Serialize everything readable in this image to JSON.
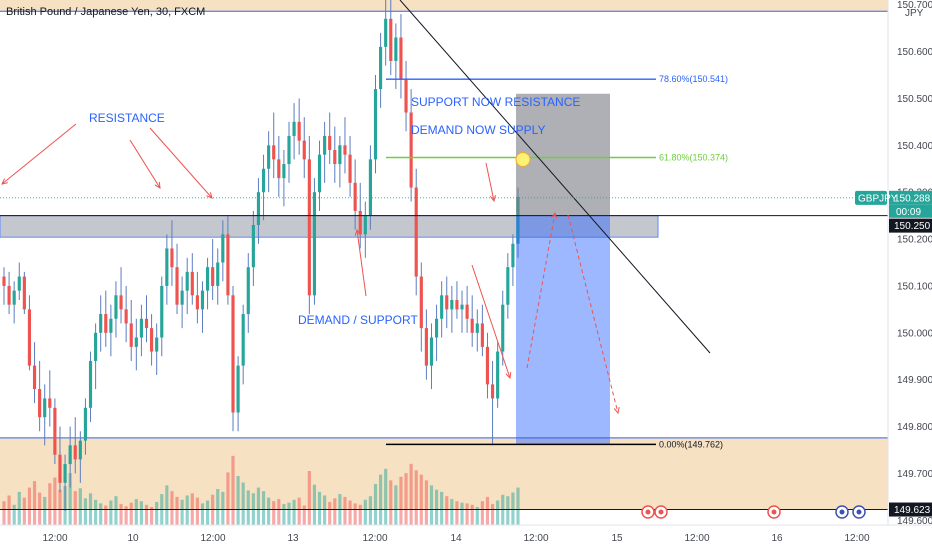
{
  "chart_data": {
    "type": "candlestick",
    "title": "British Pound / Japanese Yen, 30, FXCM",
    "currency": "JPY",
    "symbol": "GBPJPY",
    "ylim": [
      149.59,
      150.71
    ],
    "y_ticks": [
      "150.700",
      "150.600",
      "150.500",
      "150.400",
      "150.300",
      "150.200",
      "150.100",
      "150.000",
      "149.900",
      "149.800",
      "149.700",
      "149.600"
    ],
    "x_ticks": [
      "12:00",
      "10",
      "12:00",
      "13",
      "12:00",
      "14",
      "12:00",
      "15",
      "12:00",
      "16",
      "12:00"
    ],
    "price_labels": {
      "last_price": "150.288",
      "countdown": "00:09",
      "level_high": "150.250",
      "level_low": "149.623"
    },
    "zones": {
      "resistance": [
        150.204,
        150.25
      ],
      "upper_supply": [
        150.686,
        150.71
      ],
      "lower_demand": [
        149.623,
        149.776
      ]
    },
    "annotations": {
      "resistance": "RESISTANCE",
      "demand_support": "DEMAND / SUPPORT",
      "support_now_resistance": "SUPPORT NOW RESISTANCE",
      "demand_now_supply": "DEMAND NOW SUPPLY"
    },
    "fib_levels": [
      {
        "label": "78.60%(150.541)",
        "price": 150.541
      },
      {
        "label": "61.80%(150.374)",
        "price": 150.374
      },
      {
        "label": "0.00%(149.762)",
        "price": 149.762
      }
    ],
    "position": {
      "entry": 150.25,
      "stop": 150.51,
      "target": 149.762
    },
    "series": [
      {
        "values": [
          [
            150.12,
            150.14,
            150.06,
            150.1
          ],
          [
            150.1,
            150.13,
            150.04,
            150.06
          ],
          [
            150.06,
            150.11,
            150.02,
            150.09
          ],
          [
            150.09,
            150.15,
            150.07,
            150.12
          ],
          [
            150.12,
            150.13,
            150.04,
            150.05
          ],
          [
            150.05,
            150.08,
            149.92,
            149.93
          ],
          [
            149.93,
            149.98,
            149.85,
            149.88
          ],
          [
            149.88,
            149.94,
            149.79,
            149.82
          ],
          [
            149.82,
            149.89,
            149.76,
            149.86
          ],
          [
            149.86,
            149.92,
            149.8,
            149.84
          ],
          [
            149.84,
            149.86,
            149.72,
            149.74
          ],
          [
            149.74,
            149.8,
            149.66,
            149.68
          ],
          [
            149.68,
            149.74,
            149.62,
            149.72
          ],
          [
            149.72,
            149.8,
            149.67,
            149.76
          ],
          [
            149.76,
            149.82,
            149.7,
            149.73
          ],
          [
            149.73,
            149.79,
            149.68,
            149.77
          ],
          [
            149.77,
            149.86,
            149.74,
            149.84
          ],
          [
            149.84,
            149.96,
            149.81,
            149.94
          ],
          [
            149.94,
            150.02,
            149.88,
            150.0
          ],
          [
            150.0,
            150.08,
            149.96,
            150.04
          ],
          [
            150.04,
            150.09,
            149.97,
            150.0
          ],
          [
            150.0,
            150.06,
            149.95,
            150.03
          ],
          [
            150.03,
            150.11,
            149.99,
            150.08
          ],
          [
            150.08,
            150.14,
            150.02,
            150.05
          ],
          [
            150.05,
            150.1,
            149.98,
            150.02
          ],
          [
            150.02,
            150.07,
            149.94,
            149.97
          ],
          [
            149.97,
            150.03,
            149.92,
            149.99
          ],
          [
            149.99,
            150.06,
            149.95,
            150.03
          ],
          [
            150.03,
            150.08,
            149.98,
            150.01
          ],
          [
            150.01,
            150.04,
            149.93,
            149.96
          ],
          [
            149.96,
            150.02,
            149.91,
            149.99
          ],
          [
            149.99,
            150.12,
            149.95,
            150.1
          ],
          [
            150.1,
            150.21,
            150.06,
            150.18
          ],
          [
            150.18,
            150.24,
            150.1,
            150.14
          ],
          [
            150.14,
            150.19,
            150.04,
            150.06
          ],
          [
            150.06,
            150.12,
            150.01,
            150.09
          ],
          [
            150.09,
            150.16,
            150.04,
            150.13
          ],
          [
            150.13,
            150.17,
            150.06,
            150.08
          ],
          [
            150.08,
            150.13,
            150.02,
            150.05
          ],
          [
            150.05,
            150.11,
            150.0,
            150.09
          ],
          [
            150.09,
            150.16,
            150.05,
            150.14
          ],
          [
            150.14,
            150.2,
            150.07,
            150.1
          ],
          [
            150.1,
            150.18,
            150.06,
            150.15
          ],
          [
            150.15,
            150.24,
            150.11,
            150.21
          ],
          [
            150.21,
            150.25,
            150.06,
            150.08
          ],
          [
            150.08,
            150.1,
            149.79,
            149.83
          ],
          [
            149.83,
            149.95,
            149.79,
            149.93
          ],
          [
            149.93,
            150.06,
            149.89,
            150.04
          ],
          [
            150.04,
            150.17,
            150.0,
            150.14
          ],
          [
            150.14,
            150.26,
            150.1,
            150.23
          ],
          [
            150.23,
            150.33,
            150.19,
            150.3
          ],
          [
            150.3,
            150.38,
            150.24,
            150.35
          ],
          [
            150.35,
            150.43,
            150.3,
            150.4
          ],
          [
            150.4,
            150.47,
            150.33,
            150.37
          ],
          [
            150.37,
            150.42,
            150.29,
            150.33
          ],
          [
            150.33,
            150.39,
            150.27,
            150.36
          ],
          [
            150.36,
            150.45,
            150.32,
            150.42
          ],
          [
            150.42,
            150.49,
            150.37,
            150.45
          ],
          [
            150.45,
            150.5,
            150.38,
            150.41
          ],
          [
            150.41,
            150.46,
            150.33,
            150.37
          ],
          [
            150.37,
            150.42,
            150.04,
            150.08
          ],
          [
            150.08,
            150.33,
            150.06,
            150.3
          ],
          [
            150.3,
            150.41,
            150.26,
            150.38
          ],
          [
            150.38,
            150.45,
            150.32,
            150.42
          ],
          [
            150.42,
            150.47,
            150.36,
            150.39
          ],
          [
            150.39,
            150.44,
            150.32,
            150.36
          ],
          [
            150.36,
            150.42,
            150.31,
            150.4
          ],
          [
            150.4,
            150.46,
            150.34,
            150.38
          ],
          [
            150.38,
            150.42,
            150.29,
            150.32
          ],
          [
            150.32,
            150.37,
            150.22,
            150.26
          ],
          [
            150.26,
            150.32,
            150.18,
            150.21
          ],
          [
            150.21,
            150.28,
            150.16,
            150.25
          ],
          [
            150.25,
            150.4,
            150.22,
            150.37
          ],
          [
            150.37,
            150.55,
            150.34,
            150.52
          ],
          [
            150.52,
            150.64,
            150.48,
            150.61
          ],
          [
            150.61,
            150.71,
            150.57,
            150.67
          ],
          [
            150.67,
            150.72,
            150.55,
            150.58
          ],
          [
            150.58,
            150.66,
            150.52,
            150.63
          ],
          [
            150.63,
            150.68,
            150.5,
            150.54
          ],
          [
            150.54,
            150.58,
            150.43,
            150.47
          ],
          [
            150.47,
            150.52,
            150.28,
            150.31
          ],
          [
            150.31,
            150.35,
            150.08,
            150.12
          ],
          [
            150.12,
            150.15,
            149.96,
            150.01
          ],
          [
            150.01,
            150.05,
            149.9,
            149.93
          ],
          [
            149.93,
            150.02,
            149.88,
            149.99
          ],
          [
            149.99,
            150.06,
            149.94,
            150.03
          ],
          [
            150.03,
            150.11,
            149.99,
            150.08
          ],
          [
            150.08,
            150.12,
            150.01,
            150.05
          ],
          [
            150.05,
            150.1,
            150.0,
            150.07
          ],
          [
            150.07,
            150.11,
            150.03,
            150.05
          ],
          [
            150.05,
            150.09,
            150.0,
            150.06
          ],
          [
            150.06,
            150.1,
            150.0,
            150.03
          ],
          [
            150.03,
            150.08,
            149.97,
            150.0
          ],
          [
            150.0,
            150.05,
            149.96,
            150.02
          ],
          [
            150.02,
            150.06,
            149.95,
            149.97
          ],
          [
            149.97,
            150.0,
            149.86,
            149.89
          ],
          [
            149.89,
            149.94,
            149.76,
            149.86
          ],
          [
            149.86,
            149.98,
            149.84,
            149.96
          ],
          [
            149.96,
            150.09,
            149.93,
            150.06
          ],
          [
            150.06,
            150.17,
            150.03,
            150.14
          ],
          [
            150.14,
            150.21,
            150.1,
            150.19
          ],
          [
            150.19,
            150.31,
            150.16,
            150.29
          ]
        ]
      }
    ],
    "volume": [
      0.33,
      0.41,
      0.28,
      0.46,
      0.38,
      0.52,
      0.61,
      0.45,
      0.39,
      0.58,
      0.66,
      0.49,
      0.54,
      0.72,
      0.47,
      0.51,
      0.37,
      0.44,
      0.35,
      0.3,
      0.27,
      0.34,
      0.4,
      0.29,
      0.26,
      0.31,
      0.36,
      0.33,
      0.28,
      0.25,
      0.32,
      0.43,
      0.55,
      0.47,
      0.39,
      0.35,
      0.41,
      0.44,
      0.38,
      0.3,
      0.34,
      0.42,
      0.5,
      0.46,
      0.73,
      0.96,
      0.68,
      0.59,
      0.48,
      0.44,
      0.52,
      0.47,
      0.38,
      0.33,
      0.36,
      0.29,
      0.31,
      0.35,
      0.38,
      0.27,
      0.75,
      0.56,
      0.46,
      0.41,
      0.32,
      0.37,
      0.43,
      0.39,
      0.34,
      0.3,
      0.28,
      0.35,
      0.4,
      0.57,
      0.7,
      0.78,
      0.62,
      0.55,
      0.67,
      0.72,
      0.85,
      0.76,
      0.7,
      0.62,
      0.55,
      0.49,
      0.46,
      0.4,
      0.36,
      0.33,
      0.31,
      0.3,
      0.28,
      0.25,
      0.33,
      0.39,
      0.29,
      0.34,
      0.42,
      0.4,
      0.45,
      0.52
    ]
  }
}
